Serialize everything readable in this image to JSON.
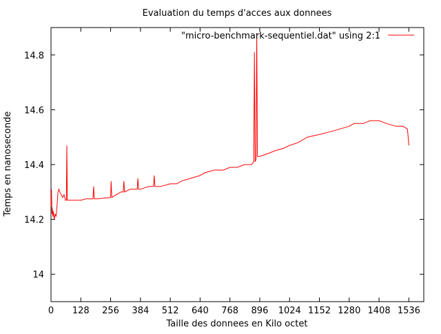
{
  "chart_data": {
    "type": "line",
    "title": "Evaluation du temps d'acces aux donnees",
    "xlabel": "Taille des donnees en Kilo octet",
    "ylabel": "Temps en nanoseconde",
    "xlim": [
      0,
      1600
    ],
    "ylim": [
      13.9,
      14.9
    ],
    "x_ticks": [
      0,
      128,
      256,
      384,
      512,
      640,
      768,
      896,
      1024,
      1152,
      1280,
      1408,
      1536
    ],
    "y_ticks": [
      14,
      14.2,
      14.4,
      14.6,
      14.8
    ],
    "y_tick_labels": [
      "14",
      "14.2",
      "14.4",
      "14.6",
      "14.8"
    ],
    "grid": false,
    "legend_position": "top-right",
    "colors": {
      "series": "#ff0000",
      "axes": "#000000",
      "background": "#ffffff"
    },
    "series": [
      {
        "name": "\"micro-benchmark-sequentiel.dat\" using 2:1",
        "x": [
          0,
          2,
          4,
          6,
          8,
          10,
          14,
          18,
          22,
          26,
          30,
          34,
          38,
          44,
          50,
          56,
          62,
          66,
          68,
          70,
          80,
          100,
          128,
          150,
          180,
          183,
          186,
          200,
          230,
          256,
          258,
          261,
          280,
          300,
          310,
          313,
          316,
          340,
          360,
          370,
          373,
          376,
          384,
          420,
          440,
          443,
          446,
          470,
          512,
          540,
          560,
          600,
          640,
          660,
          700,
          740,
          768,
          800,
          830,
          860,
          870,
          873,
          876,
          880,
          883,
          886,
          896,
          930,
          960,
          1000,
          1024,
          1060,
          1100,
          1152,
          1200,
          1240,
          1280,
          1300,
          1340,
          1370,
          1408,
          1440,
          1480,
          1510,
          1530,
          1536
        ],
        "y": [
          14.25,
          14.31,
          14.22,
          14.24,
          14.21,
          14.23,
          14.2,
          14.22,
          14.21,
          14.25,
          14.3,
          14.31,
          14.3,
          14.29,
          14.28,
          14.29,
          14.27,
          14.27,
          14.47,
          14.27,
          14.27,
          14.27,
          14.27,
          14.275,
          14.275,
          14.32,
          14.275,
          14.275,
          14.278,
          14.28,
          14.34,
          14.28,
          14.29,
          14.3,
          14.3,
          14.34,
          14.3,
          14.31,
          14.31,
          14.31,
          14.35,
          14.31,
          14.31,
          14.32,
          14.32,
          14.36,
          14.32,
          14.32,
          14.33,
          14.33,
          14.34,
          14.35,
          14.36,
          14.37,
          14.38,
          14.38,
          14.39,
          14.39,
          14.4,
          14.4,
          14.41,
          14.81,
          14.41,
          14.42,
          14.88,
          14.43,
          14.43,
          14.44,
          14.45,
          14.46,
          14.47,
          14.48,
          14.5,
          14.51,
          14.52,
          14.53,
          14.54,
          14.55,
          14.55,
          14.56,
          14.56,
          14.55,
          14.54,
          14.54,
          14.53,
          14.47
        ]
      }
    ]
  }
}
